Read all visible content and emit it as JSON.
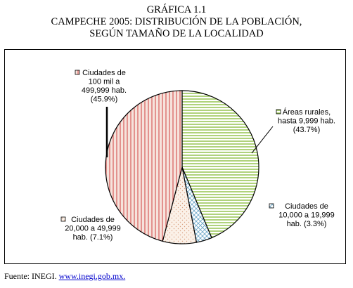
{
  "title_lines": [
    "GRÁFICA 1.1",
    "CAMPECHE 2005: DISTRIBUCIÓN DE LA POBLACIÓN,",
    "SEGÚN TAMAÑO DE LA LOCALIDAD"
  ],
  "footer": {
    "prefix": "Fuente:  INEGI.",
    "link": "www.inegi.gob.mx."
  },
  "chart_data": {
    "type": "pie",
    "title": "CAMPECHE 2005: DISTRIBUCIÓN DE LA POBLACIÓN, SEGÚN TAMAÑO DE LA LOCALIDAD",
    "categories": [
      "Áreas rurales, hasta 9,999 hab.",
      "Ciudades de 10,000 a 19,999 hab.",
      "Ciudades de 20,000 a 49,999 hab.",
      "Ciudades de 100 mil a 499,999 hab."
    ],
    "values": [
      43.7,
      3.3,
      7.1,
      45.9
    ],
    "unit": "%",
    "labels": [
      [
        "Áreas rurales,",
        "hasta 9,999 hab.",
        "(43.7%)"
      ],
      [
        "Ciudades de",
        "10,000 a 19,999",
        "hab. (3.3%)"
      ],
      [
        "Ciudades de",
        "20,000 a 49,999",
        "hab. (7.1%)"
      ],
      [
        "Ciudades de",
        "100 mil a",
        "499,999 hab.",
        "(45.9%)"
      ]
    ],
    "patterns": [
      "horizontal-lines",
      "diagonal-hatch",
      "dots",
      "vertical-lines"
    ],
    "colors": [
      "#8fc043",
      "#6fa8c8",
      "#d9a080",
      "#d04040"
    ],
    "fills": [
      "#ffffff",
      "#ffffff",
      "#fbf1e8",
      "#f6e3dc"
    ],
    "legend": "labels beside slices"
  }
}
